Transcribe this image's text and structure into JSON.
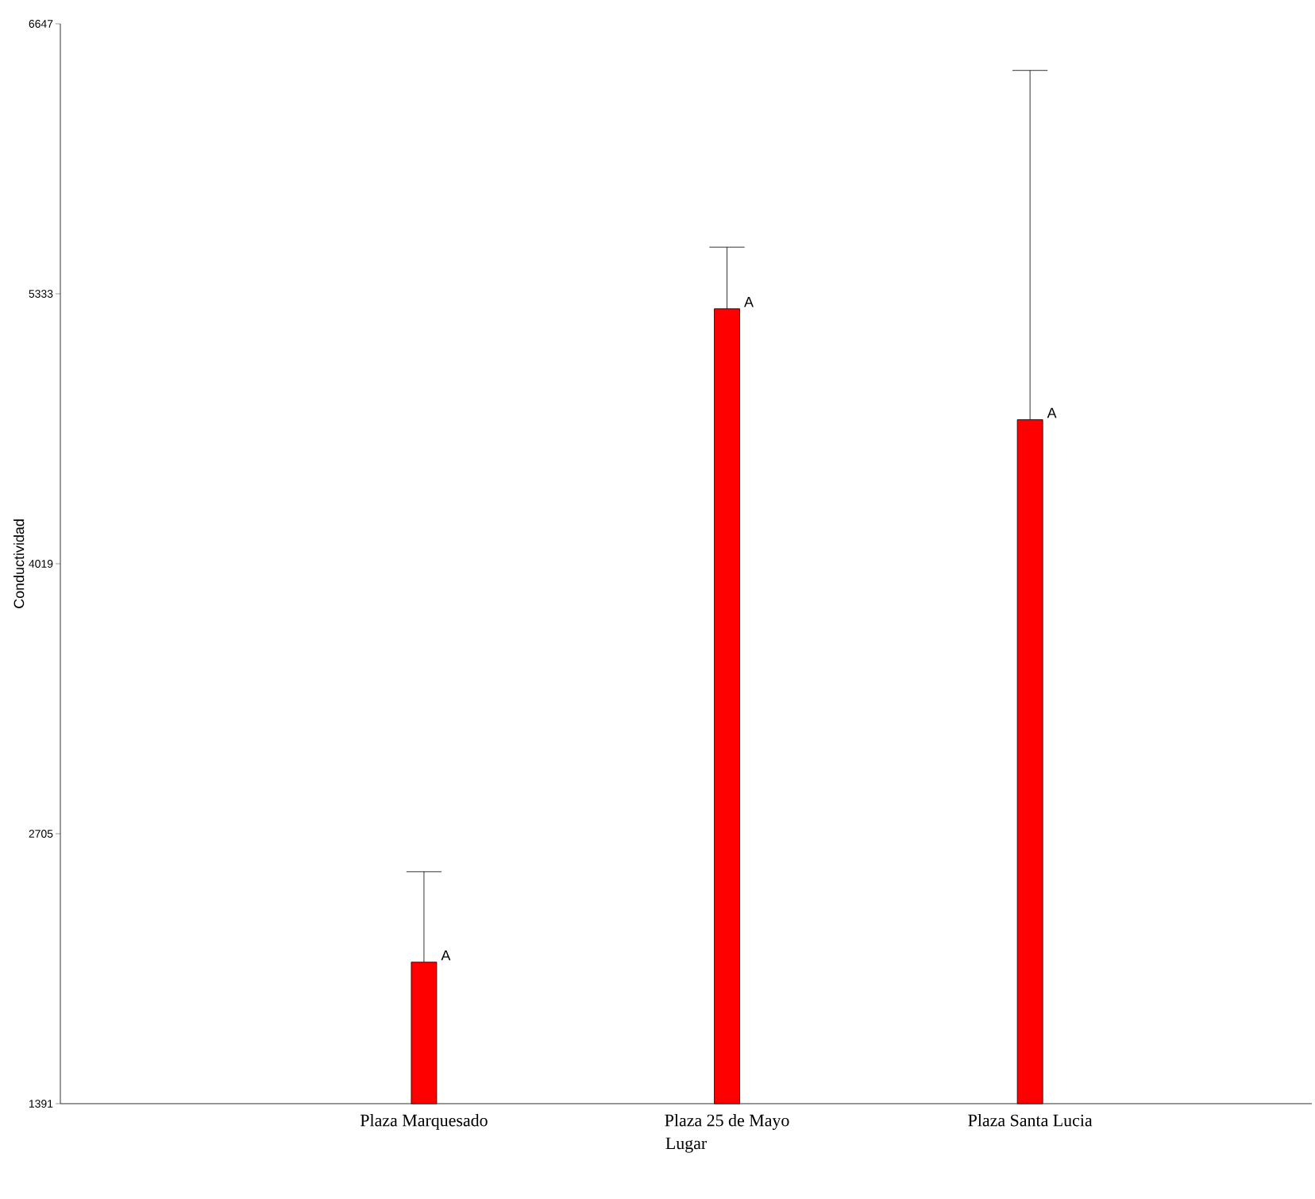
{
  "chart_data": {
    "type": "bar",
    "xlabel": "Lugar",
    "ylabel": "Conductividad",
    "categories": [
      "Plaza Marquesado",
      "Plaza 25 de Mayo",
      "Plaza Santa Lucia"
    ],
    "values": [
      2080,
      5260,
      4720
    ],
    "errors": [
      [
        2080,
        2520
      ],
      [
        5260,
        5560
      ],
      [
        4720,
        6420
      ]
    ],
    "color": "#ff0000",
    "ylim": [
      1391,
      6647
    ],
    "yticks": [
      1391,
      2705,
      4019,
      5333,
      6647
    ],
    "annotations": [
      "A",
      "A",
      "A"
    ],
    "grid": false
  }
}
